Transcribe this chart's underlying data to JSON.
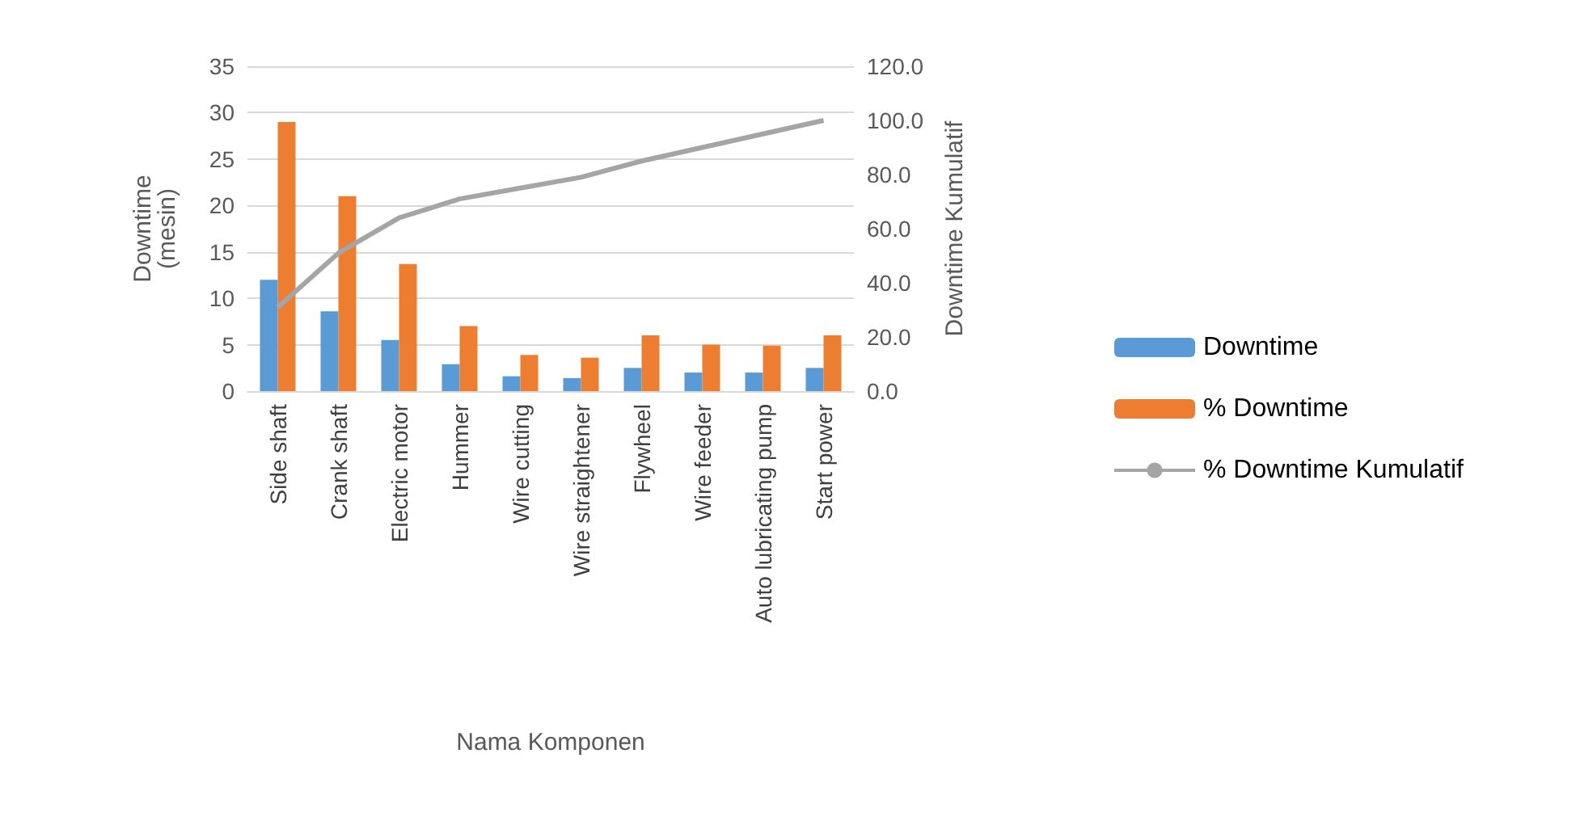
{
  "chart_data": {
    "type": "bar",
    "xlabel": "Nama Komponen",
    "ylabel": "Downtime\n(mesin)",
    "y2label": "Downtime Kumulatif",
    "categories": [
      "Side shaft",
      "Crank shaft",
      "Electric motor",
      "Hummer",
      "Wire cutting",
      "Wire straightener",
      "Flywheel",
      "Wire feeder",
      "Auto lubricating pump",
      "Start power"
    ],
    "series": [
      {
        "name": "Downtime",
        "color": "#5b9bd5",
        "values": [
          12,
          8.6,
          5.5,
          2.9,
          1.6,
          1.4,
          2.5,
          2,
          2,
          2.5
        ]
      },
      {
        "name": "% Downtime",
        "color": "#ed7d31",
        "values": [
          29,
          21,
          13.7,
          7,
          3.9,
          3.6,
          6,
          5,
          4.9,
          6
        ]
      },
      {
        "name": "% Downtime Kumulatif",
        "type": "line",
        "axis": "y2",
        "color": "#a5a5a5",
        "values": [
          31,
          51,
          64,
          71,
          75,
          79,
          85,
          90,
          95,
          100
        ]
      }
    ],
    "ylim": [
      0,
      35
    ],
    "yticks": [
      0,
      5,
      10,
      15,
      20,
      25,
      30,
      35
    ],
    "y2lim": [
      0,
      120
    ],
    "y2ticks": [
      {
        "value": 0,
        "label": "0.0"
      },
      {
        "value": 20,
        "label": "20.0"
      },
      {
        "value": 40,
        "label": "40.0"
      },
      {
        "value": 60,
        "label": "60.0"
      },
      {
        "value": 80,
        "label": "80.0"
      },
      {
        "value": 100,
        "label": "100.0"
      },
      {
        "value": 120,
        "label": "120.0"
      }
    ],
    "grid": "y",
    "legend": "right",
    "marker": "none"
  }
}
